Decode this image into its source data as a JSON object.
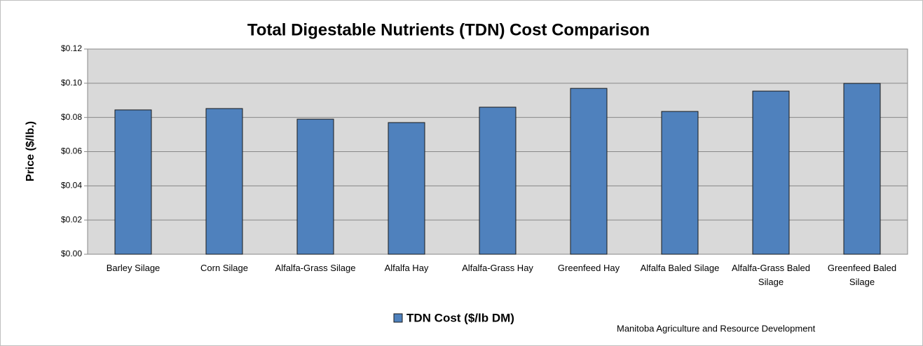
{
  "chart_data": {
    "type": "bar",
    "title": "Total Digestable Nutrients (TDN) Cost Comparison",
    "y_label": "Price ($/lb.)",
    "categories": [
      "Barley Silage",
      "Corn Silage",
      "Alfalfa-Grass Silage",
      "Alfalfa Hay",
      "Alfalfa-Grass Hay",
      "Greenfeed Hay",
      "Alfalfa Baled Silage",
      "Alfalfa-Grass Baled Silage",
      "Greenfeed Baled Silage"
    ],
    "series": [
      {
        "name": "TDN Cost ($/lb DM)",
        "color": "#4f81bd",
        "values": [
          0.0844,
          0.0852,
          0.079,
          0.077,
          0.086,
          0.097,
          0.0835,
          0.0954,
          0.0999
        ]
      }
    ],
    "ylim": [
      0,
      0.12
    ],
    "yticks": [
      {
        "value": 0,
        "label": "$0.00"
      },
      {
        "value": 0.02,
        "label": "$0.02"
      },
      {
        "value": 0.04,
        "label": "$0.04"
      },
      {
        "value": 0.06,
        "label": "$0.06"
      },
      {
        "value": 0.08,
        "label": "$0.08"
      },
      {
        "value": 0.1,
        "label": "$0.10"
      },
      {
        "value": 0.12,
        "label": "$0.12"
      }
    ],
    "grid": true,
    "legend": "bottom",
    "source": "Manitoba Agriculture and Resource Development"
  }
}
